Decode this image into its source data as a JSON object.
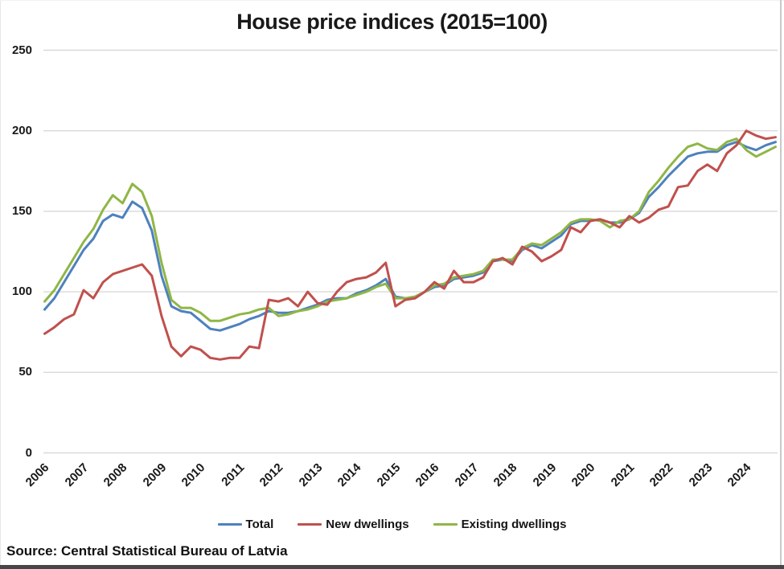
{
  "title": "House price indices (2015=100)",
  "source": "Source: Central Statistical Bureau of Latvia",
  "colors": {
    "total": "#4E81BD",
    "new_dwellings": "#C0504D",
    "existing_dwellings": "#8FB646",
    "gridline": "#D9D9D9",
    "text": "#191919"
  },
  "y_axis": {
    "ticks": [
      0,
      50,
      100,
      150,
      200,
      250
    ],
    "min": 0,
    "max": 250
  },
  "x_axis": {
    "years": [
      "2006",
      "2007",
      "2008",
      "2009",
      "2010",
      "2011",
      "2012",
      "2013",
      "2014",
      "2015",
      "2016",
      "2017",
      "2018",
      "2019",
      "2020",
      "2021",
      "2022",
      "2023",
      "2024"
    ]
  },
  "legend": [
    {
      "label": "Total",
      "color": "#4E81BD"
    },
    {
      "label": "New dwellings",
      "color": "#C0504D"
    },
    {
      "label": "Existing dwellings",
      "color": "#8FB646"
    }
  ],
  "chart_data": {
    "type": "line",
    "title": "House price indices (2015=100)",
    "x_unit": "quarterly",
    "x_start": "2006Q1",
    "x_end": "2024Q4",
    "categories_years": [
      "2006",
      "2007",
      "2008",
      "2009",
      "2010",
      "2011",
      "2012",
      "2013",
      "2014",
      "2015",
      "2016",
      "2017",
      "2018",
      "2019",
      "2020",
      "2021",
      "2022",
      "2023",
      "2024"
    ],
    "ylim": [
      0,
      250
    ],
    "grid": "horizontal",
    "legend_position": "bottom",
    "series": [
      {
        "name": "Total",
        "color": "#4E81BD",
        "values": [
          89,
          96,
          106,
          116,
          126,
          133,
          144,
          148,
          146,
          156,
          152,
          138,
          110,
          91,
          88,
          87,
          82,
          77,
          76,
          78,
          80,
          83,
          85,
          88,
          87,
          87,
          88,
          90,
          92,
          95,
          96,
          96,
          99,
          101,
          104,
          108,
          97,
          96,
          96,
          100,
          103,
          104,
          108,
          109,
          110,
          112,
          119,
          120,
          119,
          126,
          129,
          127,
          131,
          135,
          142,
          144,
          144,
          145,
          143,
          143,
          145,
          149,
          159,
          165,
          172,
          178,
          184,
          186,
          187,
          187,
          191,
          193,
          190,
          188,
          191,
          193
        ]
      },
      {
        "name": "New dwellings",
        "color": "#C0504D",
        "values": [
          74,
          78,
          83,
          86,
          101,
          96,
          106,
          111,
          113,
          115,
          117,
          110,
          85,
          66,
          60,
          66,
          64,
          59,
          58,
          59,
          59,
          66,
          65,
          95,
          94,
          96,
          91,
          100,
          93,
          92,
          100,
          106,
          108,
          109,
          112,
          118,
          91,
          95,
          96,
          100,
          106,
          102,
          113,
          106,
          106,
          109,
          119,
          121,
          117,
          128,
          125,
          119,
          122,
          126,
          140,
          137,
          144,
          145,
          143,
          140,
          147,
          143,
          146,
          151,
          153,
          165,
          166,
          175,
          179,
          175,
          186,
          191,
          200,
          197,
          195,
          196
        ]
      },
      {
        "name": "Existing dwellings",
        "color": "#8FB646",
        "values": [
          94,
          101,
          111,
          121,
          131,
          139,
          151,
          160,
          155,
          167,
          162,
          147,
          118,
          95,
          90,
          90,
          87,
          82,
          82,
          84,
          86,
          87,
          89,
          90,
          85,
          86,
          88,
          89,
          91,
          94,
          95,
          96,
          98,
          100,
          103,
          105,
          96,
          96,
          97,
          100,
          104,
          105,
          109,
          110,
          111,
          113,
          120,
          120,
          120,
          127,
          130,
          129,
          133,
          137,
          143,
          145,
          145,
          144,
          140,
          144,
          145,
          150,
          162,
          169,
          177,
          184,
          190,
          192,
          189,
          188,
          193,
          195,
          188,
          184,
          187,
          190
        ]
      }
    ]
  }
}
